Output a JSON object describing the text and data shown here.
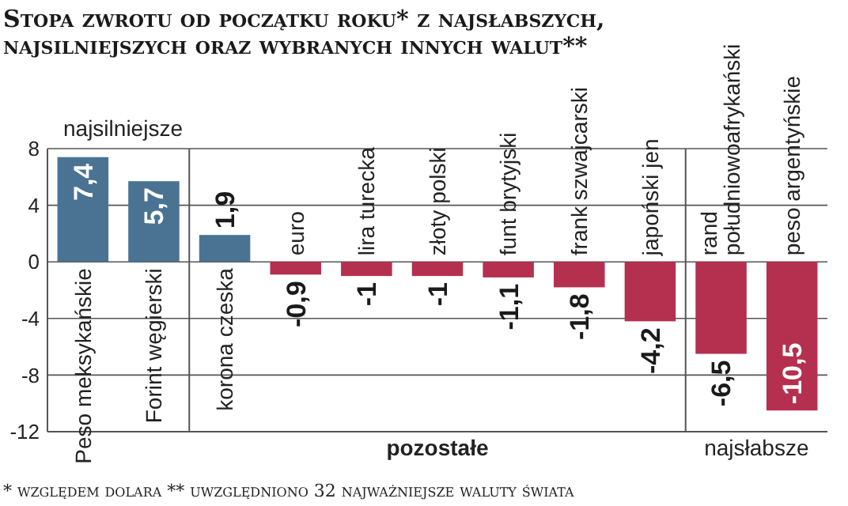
{
  "chart_data": {
    "type": "bar",
    "title": "Stopa zwrotu od początku roku* z najsłabszych, najsilniejszych oraz wybranych innych walut**",
    "categories": [
      "Peso meksykańskie",
      "Forint węgierski",
      "korona czeska",
      "euro",
      "lira turecka",
      "złoty polski",
      "funt brytyjski",
      "frank szwajcarski",
      "japoński jen",
      "rand południowoafrykański",
      "peso argentyńskie"
    ],
    "values": [
      7.4,
      5.7,
      1.9,
      -0.9,
      -1,
      -1,
      -1.1,
      -1.8,
      -4.2,
      -6.5,
      -10.5
    ],
    "value_labels": [
      "7,4",
      "5,7",
      "1,9",
      "-0,9",
      "-1",
      "-1",
      "-1,1",
      "-1,8",
      "-4,2",
      "-6,5",
      "-10,5"
    ],
    "colors": [
      "#4a7393",
      "#4a7393",
      "#4a7393",
      "#b5304f",
      "#b5304f",
      "#b5304f",
      "#b5304f",
      "#b5304f",
      "#b5304f",
      "#b5304f",
      "#b5304f"
    ],
    "ylim": [
      -12,
      8
    ],
    "yticks": [
      -12,
      -8,
      -4,
      0,
      4,
      8
    ],
    "grid": "y",
    "annotations": [
      "najsilniejsze",
      "pozostałe",
      "najsłabsze",
      "* względem dolara ** uwzględniono 32 najważniejsze waluty świata"
    ]
  }
}
